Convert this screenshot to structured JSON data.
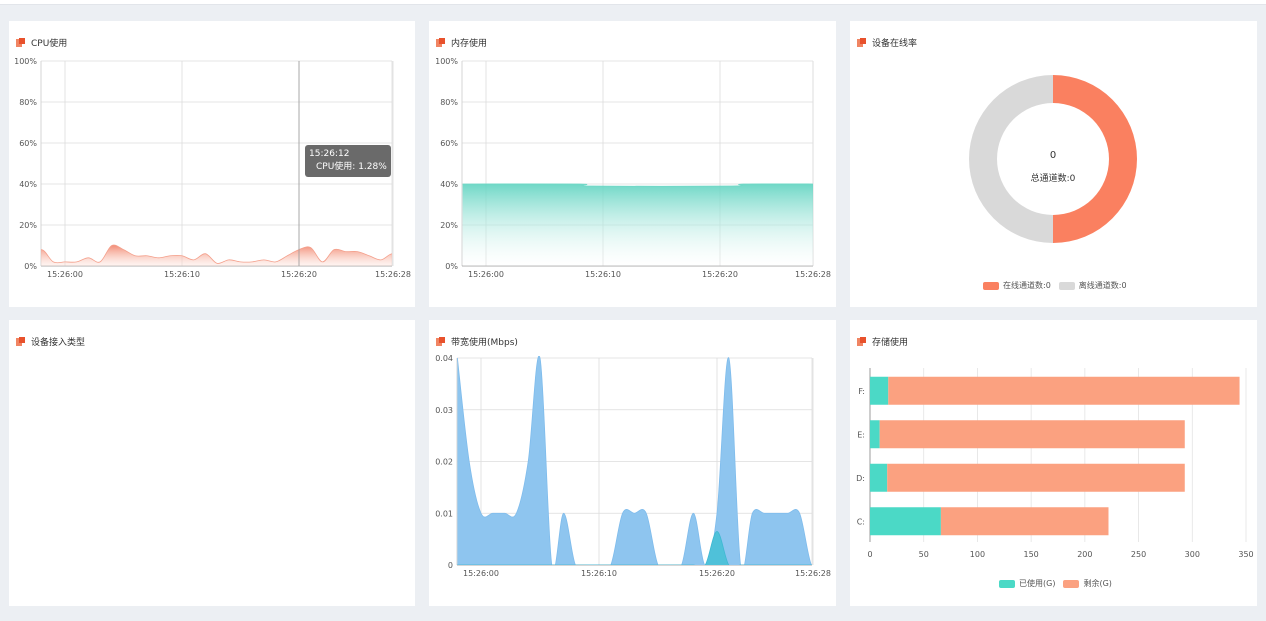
{
  "colors": {
    "cpu": "#f28b74",
    "memory": "#5fd3c0",
    "bandwidth_a": "#8ec5ef",
    "bandwidth_b": "#4fc1d9",
    "online": "#fa8060",
    "offline": "#d9d9d9",
    "used": "#4bd9c6",
    "remaining": "#fba180"
  },
  "panels": {
    "cpu": {
      "title": "CPU使用",
      "icon": "chart-icon"
    },
    "memory": {
      "title": "内存使用",
      "icon": "chart-icon"
    },
    "online": {
      "title": "设备在线率",
      "icon": "chart-icon"
    },
    "access": {
      "title": "设备接入类型",
      "icon": "chart-icon"
    },
    "bandwidth": {
      "title": "带宽使用(Mbps)",
      "icon": "chart-icon"
    },
    "storage": {
      "title": "存储使用",
      "icon": "chart-icon"
    }
  },
  "tooltip": {
    "time": "15:26:12",
    "text": "CPU使用: 1.28%"
  },
  "donut": {
    "center_value": "0",
    "center_label": "总通道数:0"
  },
  "chart_data": [
    {
      "id": "cpu",
      "type": "area",
      "title": "CPU使用",
      "y_ticks": [
        "100%",
        "80%",
        "60%",
        "40%",
        "20%",
        "0%"
      ],
      "x_ticks": [
        "15:26:00",
        "15:26:10",
        "15:26:20",
        "15:26:28"
      ],
      "ylim": [
        0,
        100
      ],
      "x": [
        -3,
        -2,
        -1,
        0,
        1,
        2,
        3,
        4,
        5,
        6,
        7,
        8,
        9,
        10,
        11,
        12,
        13,
        14,
        15,
        16,
        17,
        18,
        19,
        20,
        21,
        22,
        23,
        24,
        25,
        26,
        27,
        28,
        29
      ],
      "values": [
        3,
        8,
        2,
        2,
        2,
        4,
        2,
        10,
        8,
        5,
        5,
        4,
        5,
        5,
        3,
        6,
        1.3,
        3,
        2,
        2,
        3,
        2,
        5,
        8,
        9,
        2,
        8,
        7,
        7,
        5,
        3,
        6,
        3
      ],
      "grid": true
    },
    {
      "id": "memory",
      "type": "area",
      "title": "内存使用",
      "y_ticks": [
        "100%",
        "80%",
        "60%",
        "40%",
        "20%",
        "0%"
      ],
      "x_ticks": [
        "15:26:00",
        "15:26:10",
        "15:26:20",
        "15:26:28"
      ],
      "ylim": [
        0,
        100
      ],
      "x": [
        -2,
        8,
        9,
        21,
        22,
        29
      ],
      "values": [
        40,
        40,
        39,
        39,
        40,
        40
      ],
      "grid": true
    },
    {
      "id": "online",
      "type": "pie",
      "title": "设备在线率",
      "categories": [
        "在线通道数:0",
        "离线通道数:0"
      ],
      "values": [
        50,
        50
      ],
      "legend": "bottom"
    },
    {
      "id": "bandwidth",
      "type": "area",
      "title": "带宽使用(Mbps)",
      "y_ticks": [
        "0.04",
        "0.03",
        "0.02",
        "0.01",
        "0"
      ],
      "x_ticks": [
        "15:26:00",
        "15:26:10",
        "15:26:20",
        "15:26:28"
      ],
      "ylim": [
        0,
        0.04
      ],
      "x": [
        -2,
        -1,
        0,
        1,
        2,
        3,
        4,
        5,
        6,
        7,
        8,
        9,
        10,
        11,
        12,
        13,
        14,
        15,
        16,
        17,
        18,
        19,
        20,
        21,
        22,
        23,
        24,
        25,
        26,
        27,
        28,
        29
      ],
      "series": [
        {
          "values": [
            0.04,
            0.02,
            0.01,
            0.01,
            0.01,
            0.01,
            0.02,
            0.04,
            0,
            0.01,
            0,
            0,
            0,
            0,
            0.01,
            0.01,
            0.01,
            0,
            0,
            0,
            0.01,
            0,
            0.01,
            0.04,
            0,
            0.01,
            0.01,
            0.01,
            0.01,
            0.01,
            0,
            0
          ]
        },
        {
          "values": [
            0,
            0,
            0,
            0,
            0,
            0,
            0,
            0,
            0,
            0,
            0,
            0,
            0,
            0,
            0,
            0,
            0,
            0,
            0,
            0,
            0,
            0,
            0.0065,
            0,
            0,
            0,
            0,
            0,
            0,
            0,
            0,
            0
          ]
        }
      ],
      "grid": true
    },
    {
      "id": "storage",
      "type": "bar",
      "title": "存储使用",
      "orientation": "horizontal",
      "stacked": true,
      "categories": [
        "F:",
        "E:",
        "D:",
        "C:"
      ],
      "x_ticks": [
        "0",
        "50",
        "100",
        "150",
        "200",
        "250",
        "300",
        "350"
      ],
      "xlim": [
        0,
        350
      ],
      "series": [
        {
          "name": "已使用(G)",
          "values": [
            17,
            9,
            16,
            66
          ]
        },
        {
          "name": "剩余(G)",
          "values": [
            327,
            284,
            277,
            156
          ]
        }
      ],
      "legend": "bottom"
    }
  ]
}
